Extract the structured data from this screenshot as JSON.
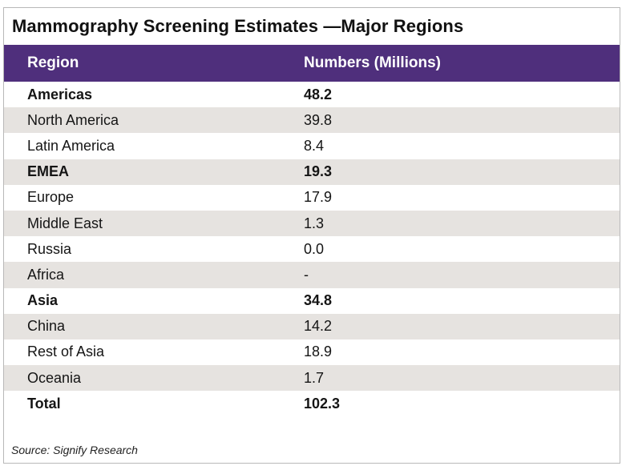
{
  "chart_data": {
    "type": "table",
    "title": "Mammography Screening Estimates —Major Regions",
    "columns": [
      "Region",
      "Numbers (Millions)"
    ],
    "rows": [
      {
        "region": "Americas",
        "value": "48.2",
        "bold": true
      },
      {
        "region": "North America",
        "value": "39.8",
        "bold": false
      },
      {
        "region": "Latin America",
        "value": "8.4",
        "bold": false
      },
      {
        "region": "EMEA",
        "value": "19.3",
        "bold": true
      },
      {
        "region": "Europe",
        "value": "17.9",
        "bold": false
      },
      {
        "region": "Middle East",
        "value": "1.3",
        "bold": false
      },
      {
        "region": "Russia",
        "value": "0.0",
        "bold": false
      },
      {
        "region": "Africa",
        "value": "-",
        "bold": false
      },
      {
        "region": "Asia",
        "value": "34.8",
        "bold": true
      },
      {
        "region": "China",
        "value": "14.2",
        "bold": false
      },
      {
        "region": "Rest of Asia",
        "value": "18.9",
        "bold": false
      },
      {
        "region": "Oceania",
        "value": "1.7",
        "bold": false
      },
      {
        "region": "Total",
        "value": "102.3",
        "bold": true
      }
    ],
    "source": "Source: Signify Research"
  },
  "colors": {
    "header_background": "#4f2f7c",
    "header_text": "#ffffff",
    "stripe": "#e6e3e0"
  }
}
